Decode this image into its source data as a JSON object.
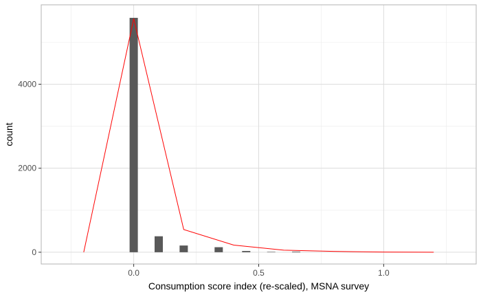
{
  "chart_data": {
    "type": "bar",
    "title": "",
    "xlabel": "Consumption score index (re-scaled), MSNA survey",
    "ylabel": "count",
    "xlim": [
      -0.37,
      1.37
    ],
    "ylim": [
      -280,
      5890
    ],
    "grid": true,
    "x_ticks": [
      0.0,
      0.5,
      1.0
    ],
    "x_tick_labels": [
      "0.0",
      "0.5",
      "1.0"
    ],
    "y_ticks": [
      0,
      2000,
      4000
    ],
    "y_tick_labels": [
      "0",
      "2000",
      "4000"
    ],
    "bar_width": 0.033,
    "bars": [
      {
        "x": 0.0,
        "count": 5580
      },
      {
        "x": 0.1,
        "count": 380
      },
      {
        "x": 0.2,
        "count": 160
      },
      {
        "x": 0.34,
        "count": 120
      },
      {
        "x": 0.45,
        "count": 30
      },
      {
        "x": 0.55,
        "count": 10
      },
      {
        "x": 0.65,
        "count": 15
      }
    ],
    "series": [
      {
        "type": "line",
        "points": [
          {
            "x": -0.2,
            "y": 0
          },
          {
            "x": 0.0,
            "y": 5560
          },
          {
            "x": 0.2,
            "y": 540
          },
          {
            "x": 0.4,
            "y": 170
          },
          {
            "x": 0.6,
            "y": 50
          },
          {
            "x": 0.8,
            "y": 20
          },
          {
            "x": 1.0,
            "y": 5
          },
          {
            "x": 1.2,
            "y": 0
          }
        ]
      }
    ],
    "colors": {
      "bar": "#595959",
      "line": "#ff0000",
      "grid": "#ebebeb",
      "panel_border": "#b3b3b3"
    }
  }
}
